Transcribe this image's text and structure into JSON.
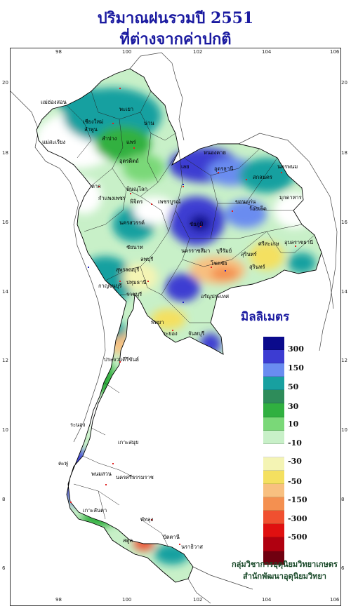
{
  "title": {
    "line1": "ปริมาณฝนรวมปี 2551",
    "line2": "ที่ต่างจากค่าปกติ"
  },
  "axis": {
    "lon_ticks": [
      "98",
      "100",
      "102",
      "104",
      "106"
    ],
    "lat_ticks": [
      "20",
      "18",
      "16",
      "14",
      "12",
      "10",
      "8",
      "6"
    ]
  },
  "legend": {
    "title": "มิลลิเมตร",
    "labels": [
      "300",
      "150",
      "50",
      "30",
      "10",
      "-10",
      "-30",
      "-50",
      "-150",
      "-300",
      "-500"
    ],
    "colors": [
      "#0a0a8c",
      "#3c3cd2",
      "#6a8cf0",
      "#18a0a0",
      "#2e8c5a",
      "#30b040",
      "#7ad878",
      "#c8f0c8",
      "#ffffff",
      "#f4f4b4",
      "#f4e060",
      "#f8c080",
      "#f49050",
      "#f05030",
      "#e01010",
      "#b00010",
      "#700010"
    ]
  },
  "credit": {
    "line1": "กลุ่มวิชาการอุตุนิยมวิทยาเกษตร",
    "line2": "สำนักพัฒนาอุตุนิยมวิทยา"
  },
  "places": [
    "แม่ฮ่องสอน",
    "เชียงใหม่",
    "ลำพูน",
    "ลำปาง",
    "น่าน",
    "พะเยา",
    "แพร่",
    "อุตรดิตถ์",
    "ตาก",
    "สุโขทัย",
    "พิษณุโลก",
    "กำแพงเพชร",
    "พิจิตร",
    "เพชรบูรณ์",
    "นครสวรรค์",
    "ชัยนาท",
    "ลพบุรี",
    "สุพรรณบุรี",
    "กาญจนบุรี",
    "ราชบุรี",
    "เพชรบุรี",
    "ปทุมธานี",
    "สระบุรี",
    "ชลบุรี",
    "ระยอง",
    "จันทบุรี",
    "ประจวบคีรีขันธ์",
    "หนองคาย",
    "อุดรธานี",
    "สกลนคร",
    "นครพนม",
    "มุกดาหาร",
    "เลย",
    "ขอนแก่น",
    "ชัยภูมิ",
    "ร้อยเอ็ด",
    "นครราชสีมา",
    "บุรีรัมย์",
    "สุรินทร์",
    "ศรีสะเกษ",
    "อุบลราชธานี",
    "ปราจีนบุรี",
    "อรัญประเทศ",
    "ระนอง",
    "ชุมพร",
    "สุราษฎร์ธานี",
    "นครศรีธรรมราช",
    "ภูเก็ต",
    "กระบี่",
    "ตรัง",
    "พัทลุง",
    "สงขลา",
    "ปัตตานี",
    "นราธิวาส"
  ]
}
